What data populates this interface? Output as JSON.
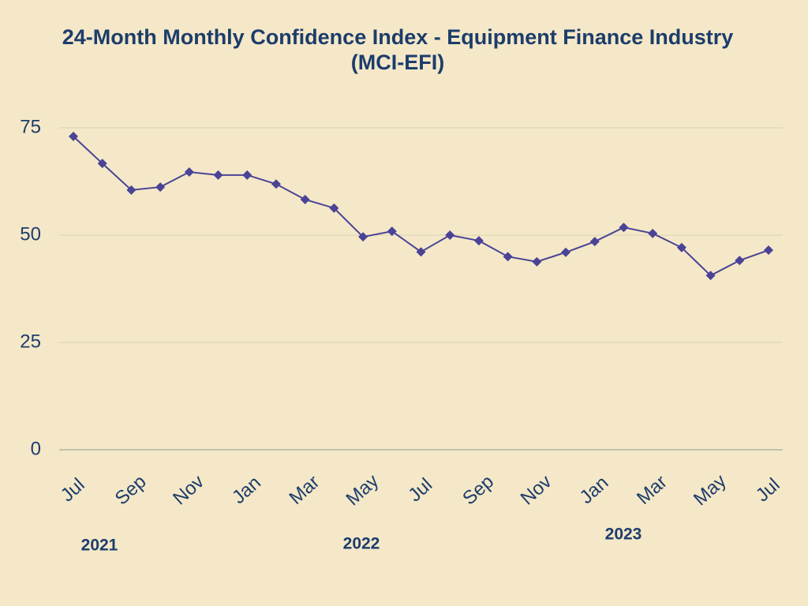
{
  "chart_data": {
    "type": "line",
    "title": "24-Month Monthly Confidence Index - Equipment Finance Industry (MCI-EFI)",
    "categories": [
      "Jul",
      null,
      "Sep",
      null,
      "Nov",
      null,
      "Jan",
      null,
      "Mar",
      null,
      "May",
      null,
      "Jul",
      null,
      "Sep",
      null,
      "Nov",
      null,
      "Jan",
      null,
      "Mar",
      null,
      "May",
      null,
      "Jul"
    ],
    "values": [
      73.0,
      66.7,
      60.5,
      61.2,
      64.7,
      64.0,
      64.0,
      61.9,
      58.3,
      56.3,
      49.6,
      50.9,
      46.1,
      50.0,
      48.7,
      45.0,
      43.8,
      46.0,
      48.5,
      51.8,
      50.4,
      47.1,
      40.6,
      44.1,
      46.5
    ],
    "color": "#4a4396",
    "ylim": [
      0,
      75
    ],
    "yticks": [
      0,
      25,
      50,
      75
    ],
    "grid": true,
    "year_labels": [
      "2021",
      "2022",
      "2023"
    ]
  }
}
